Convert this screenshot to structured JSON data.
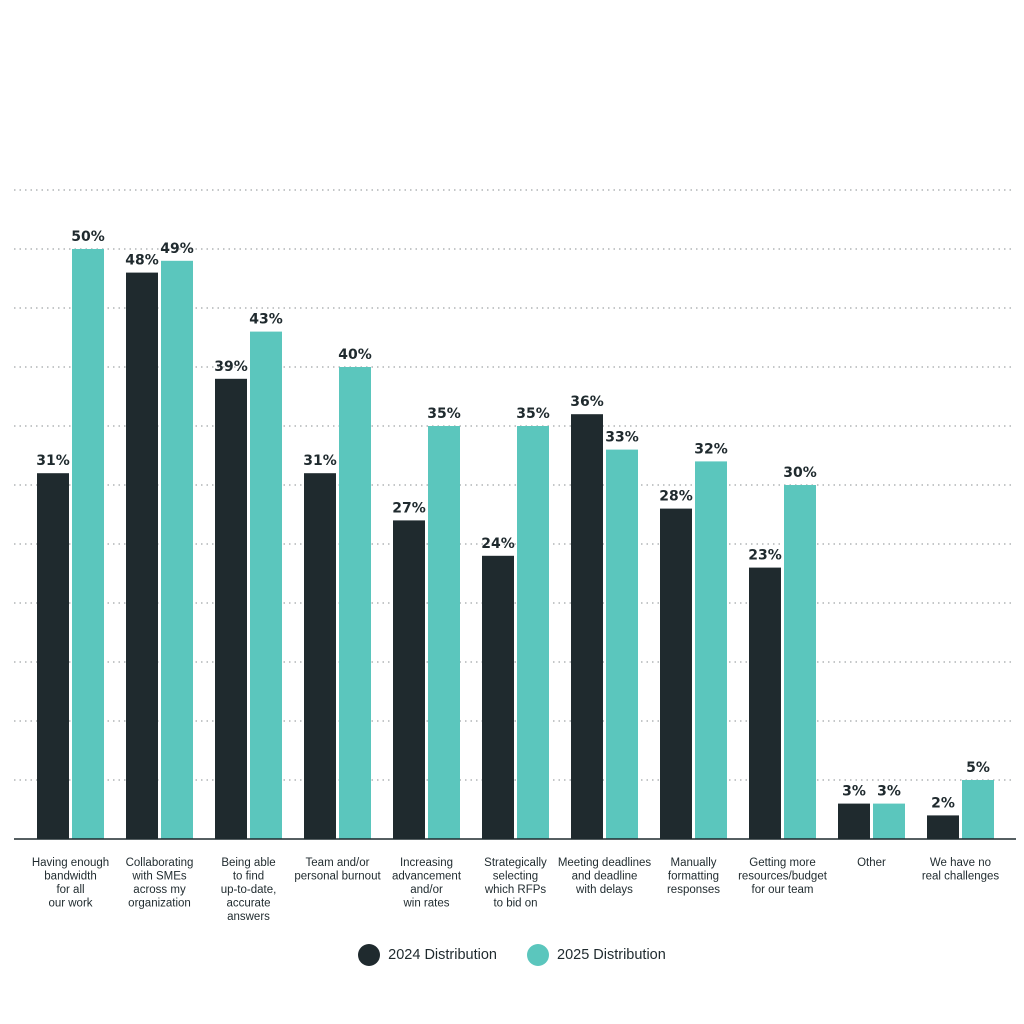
{
  "chart_data": {
    "type": "bar",
    "categories": [
      [
        "Having enough",
        "bandwidth",
        "for all",
        "our work"
      ],
      [
        "Collaborating",
        "with SMEs",
        "across my",
        "organization"
      ],
      [
        "Being able",
        "to find",
        "up-to-date,",
        "accurate",
        "answers"
      ],
      [
        "Team and/or",
        "personal burnout"
      ],
      [
        "Increasing",
        "advancement",
        "and/or",
        "win rates"
      ],
      [
        "Strategically",
        "selecting",
        "which RFPs",
        "to bid on"
      ],
      [
        "Meeting deadlines",
        "and deadline",
        "with delays"
      ],
      [
        "Manually",
        "formatting",
        "responses"
      ],
      [
        "Getting more",
        "resources/budget",
        "for our team"
      ],
      [
        "Other"
      ],
      [
        "We have no",
        "real challenges"
      ]
    ],
    "series": [
      {
        "name": "2024 Distribution",
        "color": "#1f2a2e",
        "values": [
          31,
          48,
          39,
          31,
          27,
          24,
          36,
          28,
          23,
          3,
          2
        ],
        "labels": [
          "31%",
          "48%",
          "39%",
          "31%",
          "27%",
          "24%",
          "36%",
          "28%",
          "23%",
          "3%",
          "2%"
        ]
      },
      {
        "name": "2025 Distribution",
        "color": "#5bc6bd",
        "values": [
          50,
          49,
          43,
          40,
          35,
          35,
          33,
          32,
          30,
          3,
          5
        ],
        "labels": [
          "50%",
          "49%",
          "43%",
          "40%",
          "35%",
          "35%",
          "33%",
          "32%",
          "30%",
          "3%",
          "5%"
        ]
      }
    ],
    "ylim": [
      0,
      55
    ],
    "grid": true,
    "legend_position": "bottom-center",
    "title": "",
    "xlabel": "",
    "ylabel": ""
  }
}
